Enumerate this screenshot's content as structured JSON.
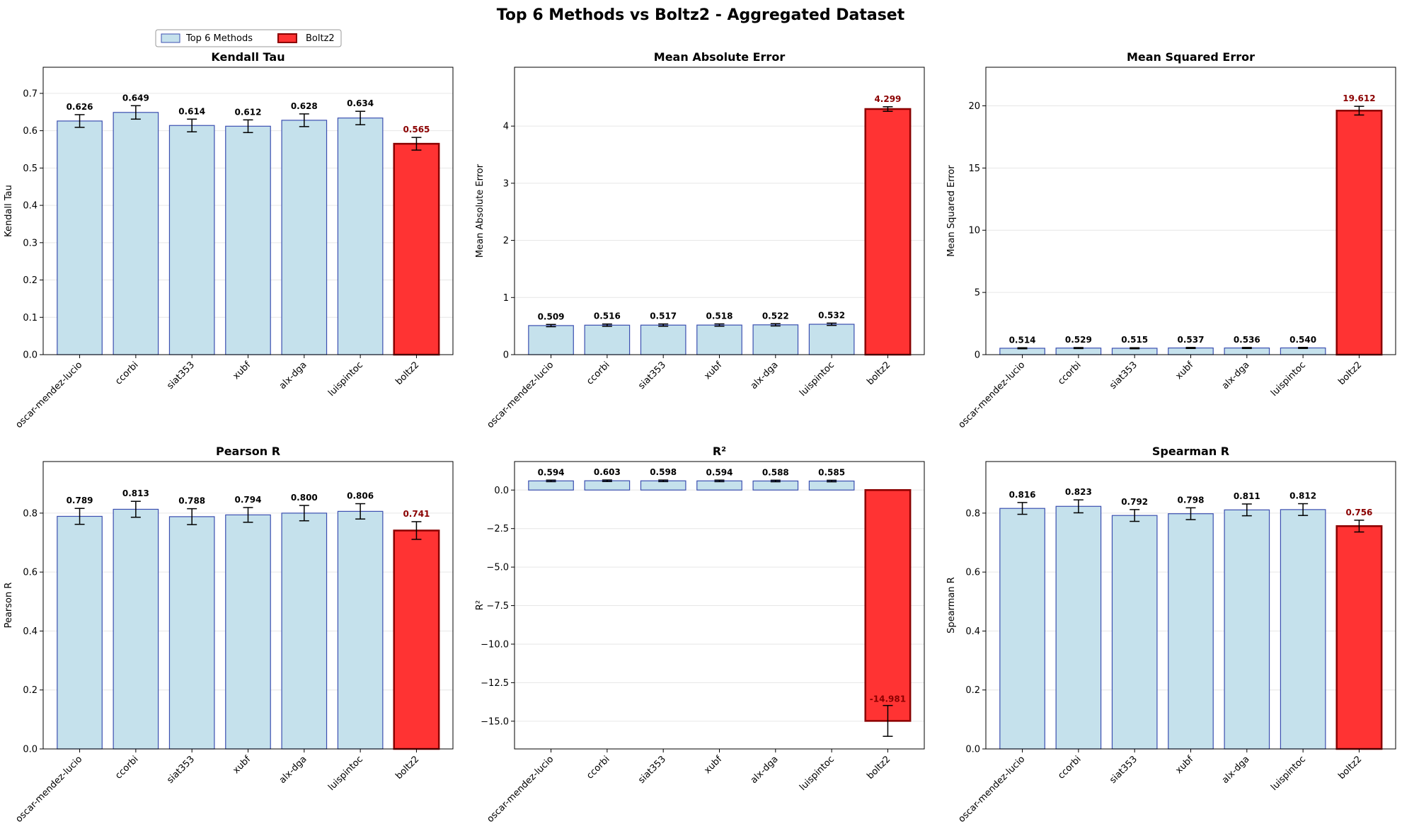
{
  "figure": {
    "title": "Top 6 Methods vs Boltz2 - Aggregated Dataset",
    "legend": [
      {
        "label": "Top 6 Methods",
        "color": "#c5e1ec",
        "edge": "#3b4fb0"
      },
      {
        "label": "Boltz2",
        "color": "#ff3333",
        "edge": "#8b0000"
      }
    ],
    "legend_position": "top-left, above first panel"
  },
  "colors": {
    "method_fill": "#c5e1ec",
    "method_edge": "#3b4fb0",
    "boltz_fill": "#ff3333",
    "boltz_edge": "#8b0000",
    "boltz_label": "#8b0000",
    "grid": "#e6e6e6"
  },
  "chart_data": [
    {
      "type": "bar",
      "title": "Kendall Tau",
      "ylabel": "Kendall Tau",
      "categories": [
        "oscar-mendez-lucio",
        "ccorbi",
        "siat353",
        "xubf",
        "alx-dga",
        "luispintoc",
        "boltz2"
      ],
      "values": [
        0.626,
        0.649,
        0.614,
        0.612,
        0.628,
        0.634,
        0.565
      ],
      "errors": [
        0.017,
        0.018,
        0.017,
        0.017,
        0.017,
        0.018,
        0.017
      ],
      "value_labels": [
        "0.626",
        "0.649",
        "0.614",
        "0.612",
        "0.628",
        "0.634",
        "0.565"
      ],
      "ylim": [
        0,
        0.77
      ],
      "yticks": [
        0.0,
        0.1,
        0.2,
        0.3,
        0.4,
        0.5,
        0.6,
        0.7
      ],
      "ytick_labels": [
        "0.0",
        "0.1",
        "0.2",
        "0.3",
        "0.4",
        "0.5",
        "0.6",
        "0.7"
      ],
      "grid": true
    },
    {
      "type": "bar",
      "title": "Mean Absolute Error",
      "ylabel": "Mean Absolute Error",
      "categories": [
        "oscar-mendez-lucio",
        "ccorbi",
        "siat353",
        "xubf",
        "alx-dga",
        "luispintoc",
        "boltz2"
      ],
      "values": [
        0.509,
        0.516,
        0.517,
        0.518,
        0.522,
        0.532,
        4.299
      ],
      "errors": [
        0.02,
        0.02,
        0.02,
        0.02,
        0.02,
        0.02,
        0.04
      ],
      "value_labels": [
        "0.509",
        "0.516",
        "0.517",
        "0.518",
        "0.522",
        "0.532",
        "4.299"
      ],
      "ylim": [
        0,
        5.03
      ],
      "yticks": [
        0,
        1,
        2,
        3,
        4
      ],
      "ytick_labels": [
        "0",
        "1",
        "2",
        "3",
        "4"
      ],
      "grid": true
    },
    {
      "type": "bar",
      "title": "Mean Squared Error",
      "ylabel": "Mean Squared Error",
      "categories": [
        "oscar-mendez-lucio",
        "ccorbi",
        "siat353",
        "xubf",
        "alx-dga",
        "luispintoc",
        "boltz2"
      ],
      "values": [
        0.514,
        0.529,
        0.515,
        0.537,
        0.536,
        0.54,
        19.612
      ],
      "errors": [
        0.04,
        0.04,
        0.04,
        0.04,
        0.04,
        0.04,
        0.35
      ],
      "value_labels": [
        "0.514",
        "0.529",
        "0.515",
        "0.537",
        "0.536",
        "0.540",
        "19.612"
      ],
      "ylim": [
        0,
        23.1
      ],
      "yticks": [
        0,
        5,
        10,
        15,
        20
      ],
      "ytick_labels": [
        "0",
        "5",
        "10",
        "15",
        "20"
      ],
      "grid": true
    },
    {
      "type": "bar",
      "title": "Pearson R",
      "ylabel": "Pearson R",
      "categories": [
        "oscar-mendez-lucio",
        "ccorbi",
        "siat353",
        "xubf",
        "alx-dga",
        "luispintoc",
        "boltz2"
      ],
      "values": [
        0.789,
        0.813,
        0.788,
        0.794,
        0.8,
        0.806,
        0.741
      ],
      "errors": [
        0.027,
        0.027,
        0.027,
        0.025,
        0.026,
        0.026,
        0.03
      ],
      "value_labels": [
        "0.789",
        "0.813",
        "0.788",
        "0.794",
        "0.800",
        "0.806",
        "0.741"
      ],
      "ylim": [
        0,
        0.975
      ],
      "yticks": [
        0.0,
        0.2,
        0.4,
        0.6,
        0.8
      ],
      "ytick_labels": [
        "0.0",
        "0.2",
        "0.4",
        "0.6",
        "0.8"
      ],
      "grid": true
    },
    {
      "type": "bar",
      "title": "R²",
      "ylabel": "R²",
      "categories": [
        "oscar-mendez-lucio",
        "ccorbi",
        "siat353",
        "xubf",
        "alx-dga",
        "luispintoc",
        "boltz2"
      ],
      "values": [
        0.594,
        0.603,
        0.598,
        0.594,
        0.588,
        0.585,
        -14.981
      ],
      "errors": [
        0.05,
        0.05,
        0.05,
        0.05,
        0.05,
        0.05,
        1.0
      ],
      "value_labels": [
        "0.594",
        "0.603",
        "0.598",
        "0.594",
        "0.588",
        "0.585",
        "-14.981"
      ],
      "ylim": [
        -16.8,
        1.85
      ],
      "yticks": [
        -15.0,
        -12.5,
        -10.0,
        -7.5,
        -5.0,
        -2.5,
        0.0
      ],
      "ytick_labels": [
        "−15.0",
        "−12.5",
        "−10.0",
        "−7.5",
        "−5.0",
        "−2.5",
        "0.0"
      ],
      "grid": true
    },
    {
      "type": "bar",
      "title": "Spearman R",
      "ylabel": "Spearman R",
      "categories": [
        "oscar-mendez-lucio",
        "ccorbi",
        "siat353",
        "xubf",
        "alx-dga",
        "luispintoc",
        "boltz2"
      ],
      "values": [
        0.816,
        0.823,
        0.792,
        0.798,
        0.811,
        0.812,
        0.756
      ],
      "errors": [
        0.02,
        0.022,
        0.02,
        0.02,
        0.02,
        0.02,
        0.02
      ],
      "value_labels": [
        "0.816",
        "0.823",
        "0.792",
        "0.798",
        "0.811",
        "0.812",
        "0.756"
      ],
      "ylim": [
        0,
        0.975
      ],
      "yticks": [
        0.0,
        0.2,
        0.4,
        0.6,
        0.8
      ],
      "ytick_labels": [
        "0.0",
        "0.2",
        "0.4",
        "0.6",
        "0.8"
      ],
      "grid": true
    }
  ]
}
